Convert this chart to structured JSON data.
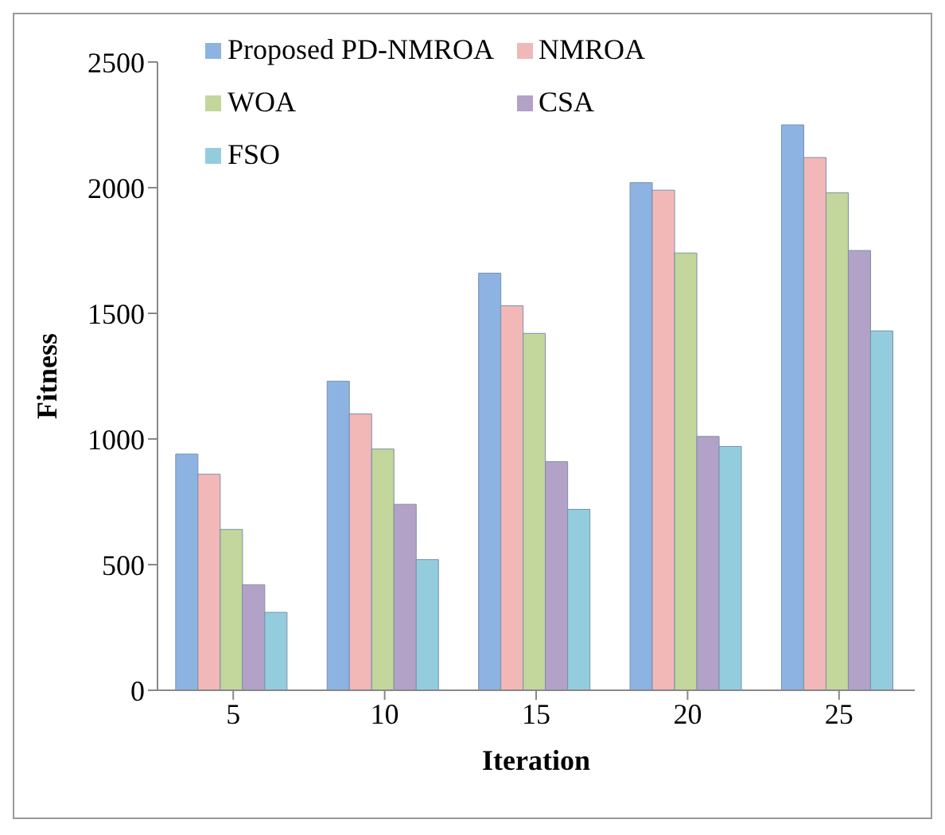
{
  "chart_data": {
    "type": "bar",
    "xlabel": "Iteration",
    "ylabel": "Fitness",
    "categories": [
      "5",
      "10",
      "15",
      "20",
      "25"
    ],
    "series": [
      {
        "name": "Proposed PD-NMROA",
        "color": "#8db3e2",
        "values": [
          940,
          1230,
          1660,
          2020,
          2250
        ]
      },
      {
        "name": "NMROA",
        "color": "#f2b8b8",
        "values": [
          860,
          1100,
          1530,
          1990,
          2120
        ]
      },
      {
        "name": "WOA",
        "color": "#c3d69b",
        "values": [
          640,
          960,
          1420,
          1740,
          1980
        ]
      },
      {
        "name": "CSA",
        "color": "#b3a2c7",
        "values": [
          420,
          740,
          910,
          1010,
          1750
        ]
      },
      {
        "name": "FSO",
        "color": "#93cddd",
        "values": [
          310,
          520,
          720,
          970,
          1430
        ]
      }
    ],
    "ylim": [
      0,
      2500
    ],
    "yticks": [
      0,
      500,
      1000,
      1500,
      2000,
      2500
    ],
    "grid": false,
    "legend": "top left"
  }
}
